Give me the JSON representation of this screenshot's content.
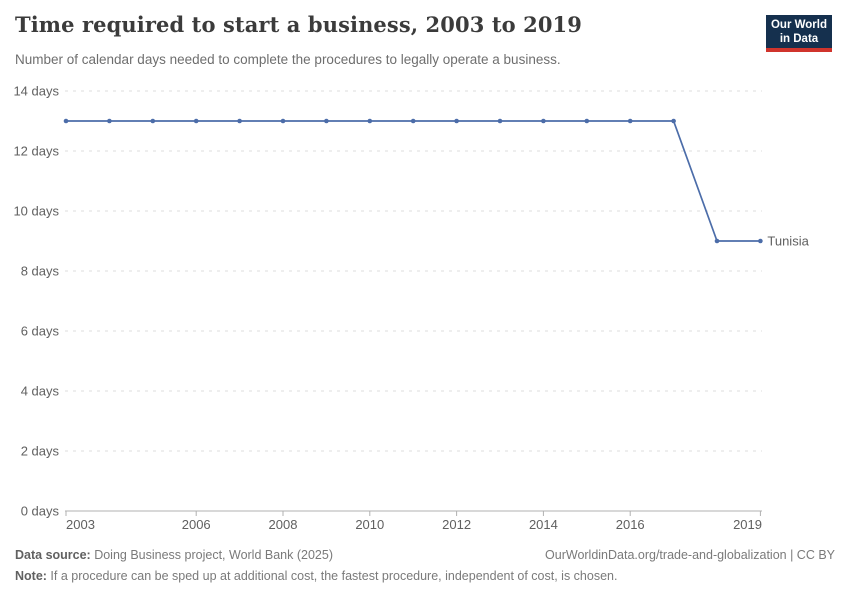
{
  "header": {
    "title": "Time required to start a business, 2003 to 2019",
    "subtitle": "Number of calendar days needed to complete the procedures to legally operate a business.",
    "logo": {
      "line1": "Our World",
      "line2": "in Data",
      "bg_color": "#15304E",
      "stripe_color": "#D0342C"
    }
  },
  "chart_data": {
    "type": "line",
    "title": "Time required to start a business, 2003 to 2019",
    "xlabel": "",
    "ylabel": "",
    "unit": "days",
    "ytick_suffix": " days",
    "x": [
      2003,
      2004,
      2005,
      2006,
      2007,
      2008,
      2009,
      2010,
      2011,
      2012,
      2013,
      2014,
      2015,
      2016,
      2017,
      2018,
      2019
    ],
    "series": [
      {
        "name": "Tunisia",
        "values": [
          13,
          13,
          13,
          13,
          13,
          13,
          13,
          13,
          13,
          13,
          13,
          13,
          13,
          13,
          13,
          9,
          9
        ],
        "color": "#4C6DA9"
      }
    ],
    "xlim": [
      2003,
      2019
    ],
    "ylim": [
      0,
      14
    ],
    "yticks": [
      0,
      2,
      4,
      6,
      8,
      10,
      12,
      14
    ],
    "xticks": [
      2003,
      2006,
      2008,
      2010,
      2012,
      2014,
      2016,
      2019
    ],
    "grid": true,
    "grid_style": "dashed",
    "legend_position": "entity-label-right-of-line",
    "marker": "dot-every-year"
  },
  "footer": {
    "datasource_label": "Data source:",
    "datasource_text": " Doing Business project, World Bank (2025)",
    "link_text": "OurWorldinData.org/trade-and-globalization | CC BY",
    "note_label": "Note:",
    "note_text": " If a procedure can be sped up at additional cost, the fastest procedure, independent of cost, is chosen."
  }
}
